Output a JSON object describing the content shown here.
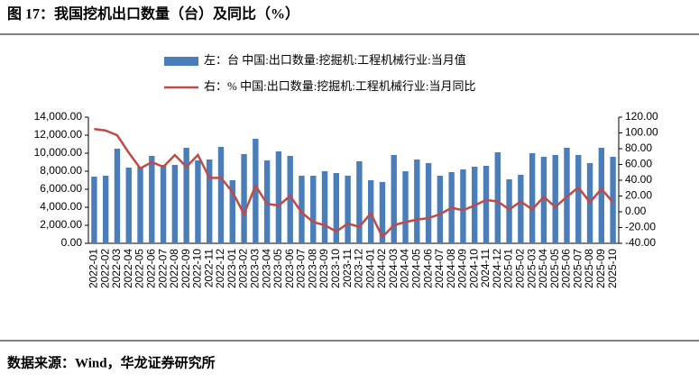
{
  "chart_data": {
    "type": "combo",
    "title": "图 17：我国挖机出口数量（台）及同比（%）",
    "source": "数据来源：Wind，华龙证券研究所",
    "categories": [
      "2022-01",
      "2022-02",
      "2022-03",
      "2022-04",
      "2022-05",
      "2022-06",
      "2022-07",
      "2022-08",
      "2022-09",
      "2022-10",
      "2022-11",
      "2022-12",
      "2023-01",
      "2023-02",
      "2023-03",
      "2023-04",
      "2023-05",
      "2023-06",
      "2023-07",
      "2023-08",
      "2023-09",
      "2023-10",
      "2023-11",
      "2023-12",
      "2024-01",
      "2024-02",
      "2024-03",
      "2024-04",
      "2024-05",
      "2024-06",
      "2024-07",
      "2024-08",
      "2024-09",
      "2024-10",
      "2024-11",
      "2024-12",
      "2025-01",
      "2025-02",
      "2025-03",
      "2025-04",
      "2025-05",
      "2025-06",
      "2025-07",
      "2025-08",
      "2025-09",
      "2025-10"
    ],
    "series": [
      {
        "name": "左：台 中国:出口数量:挖掘机:工程机械行业:当月值",
        "type": "bar",
        "color": "#4a7ebb",
        "values": [
          7400,
          7500,
          10500,
          8400,
          8500,
          9700,
          8700,
          8700,
          10600,
          9200,
          9300,
          10700,
          7000,
          9900,
          11600,
          9200,
          10200,
          9700,
          7500,
          7500,
          8000,
          7800,
          7500,
          9100,
          7000,
          6800,
          9800,
          8000,
          9300,
          8900,
          7500,
          7900,
          8200,
          8500,
          8600,
          10100,
          7100,
          7600,
          10000,
          9600,
          9800,
          10600,
          9800,
          8900,
          10600,
          9600
        ]
      },
      {
        "name": "右：% 中国:出口数量:挖掘机:工程机械行业:当月同比",
        "type": "line",
        "axis": "y2",
        "color": "#be4b48",
        "values": [
          105,
          103,
          97,
          75,
          55,
          63,
          57,
          72,
          57,
          72,
          43,
          43,
          25,
          -3,
          33,
          10,
          8,
          20,
          -1,
          -13,
          -17,
          -25,
          -15,
          -19,
          -2,
          -32,
          -17,
          -13,
          -10,
          -8,
          -3,
          5,
          2,
          8,
          15,
          13,
          3,
          13,
          3,
          19,
          6,
          19,
          31,
          12,
          29,
          12
        ]
      }
    ],
    "ylim": [
      0,
      14000
    ],
    "yticks": [
      {
        "value": 0,
        "label": "0.00"
      },
      {
        "value": 2000,
        "label": "2,000.00"
      },
      {
        "value": 4000,
        "label": "4,000.00"
      },
      {
        "value": 6000,
        "label": "6,000.00"
      },
      {
        "value": 8000,
        "label": "8,000.00"
      },
      {
        "value": 10000,
        "label": "10,000.00"
      },
      {
        "value": 12000,
        "label": "12,000.00"
      },
      {
        "value": 14000,
        "label": "14,000.00"
      }
    ],
    "y2lim": [
      -40,
      120
    ],
    "y2ticks": [
      {
        "value": -40,
        "label": "-40.00"
      },
      {
        "value": -20,
        "label": "-20.00"
      },
      {
        "value": 0,
        "label": "0.00"
      },
      {
        "value": 20,
        "label": "20.00"
      },
      {
        "value": 40,
        "label": "40.00"
      },
      {
        "value": 60,
        "label": "60.00"
      },
      {
        "value": 80,
        "label": "80.00"
      },
      {
        "value": 100,
        "label": "100.00"
      },
      {
        "value": 120,
        "label": "120.00"
      }
    ]
  }
}
